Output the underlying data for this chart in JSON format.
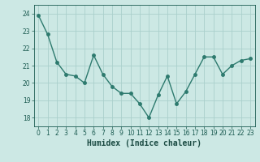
{
  "x": [
    0,
    1,
    2,
    3,
    4,
    5,
    6,
    7,
    8,
    9,
    10,
    11,
    12,
    13,
    14,
    15,
    16,
    17,
    18,
    19,
    20,
    21,
    22,
    23
  ],
  "y": [
    23.9,
    22.8,
    21.2,
    20.5,
    20.4,
    20.0,
    21.6,
    20.5,
    19.8,
    19.4,
    19.4,
    18.8,
    18.0,
    19.3,
    20.4,
    18.8,
    19.5,
    20.5,
    21.5,
    21.5,
    20.5,
    21.0,
    21.3,
    21.4
  ],
  "line_color": "#2d7a6e",
  "marker": "o",
  "marker_size": 2.5,
  "line_width": 1.0,
  "bg_color": "#cce8e4",
  "grid_color": "#aad0cc",
  "xlabel": "Humidex (Indice chaleur)",
  "xlim": [
    -0.5,
    23.5
  ],
  "ylim": [
    17.5,
    24.5
  ],
  "yticks": [
    18,
    19,
    20,
    21,
    22,
    23,
    24
  ],
  "xticks": [
    0,
    1,
    2,
    3,
    4,
    5,
    6,
    7,
    8,
    9,
    10,
    11,
    12,
    13,
    14,
    15,
    16,
    17,
    18,
    19,
    20,
    21,
    22,
    23
  ],
  "tick_color": "#1a5a50",
  "label_color": "#1a4a42",
  "xlabel_fontsize": 7,
  "tick_fontsize": 5.5
}
